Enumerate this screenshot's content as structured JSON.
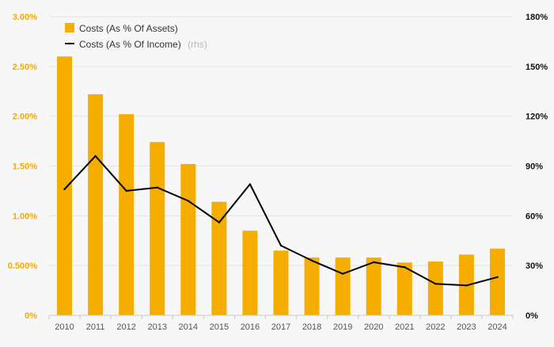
{
  "chart_data": {
    "type": "bar",
    "categories": [
      "2010",
      "2011",
      "2012",
      "2013",
      "2014",
      "2015",
      "2016",
      "2017",
      "2018",
      "2019",
      "2020",
      "2021",
      "2022",
      "2023",
      "2024"
    ],
    "series": [
      {
        "name": "Costs (As % Of Assets)",
        "type": "bar",
        "axis": "left",
        "values": [
          2.6,
          2.22,
          2.02,
          1.74,
          1.52,
          1.14,
          0.85,
          0.65,
          0.58,
          0.58,
          0.58,
          0.53,
          0.54,
          0.61,
          0.67
        ]
      },
      {
        "name": "Costs (As % Of Income)",
        "type": "line",
        "axis": "right",
        "values": [
          76,
          96,
          75,
          77,
          69,
          56,
          79,
          42,
          33,
          25,
          32,
          29,
          19,
          18,
          23
        ]
      }
    ],
    "ylim_left": [
      0,
      3.0
    ],
    "ylim_right": [
      0,
      180
    ],
    "left_ticks": [
      "0%",
      "0.500%",
      "1.00%",
      "1.50%",
      "2.00%",
      "2.50%",
      "3.00%"
    ],
    "right_ticks": [
      "0%",
      "30%",
      "60%",
      "90%",
      "120%",
      "150%",
      "180%"
    ],
    "legend": {
      "position": "top-left",
      "bar_label": "Costs (As % Of Assets)",
      "line_label": "Costs (As % Of Income)",
      "line_suffix": "(rhs)"
    },
    "grid": true,
    "colors": {
      "bar": "#f5ae00",
      "line": "#000000",
      "left_axis_text": "#f5a800",
      "right_axis_text": "#111111",
      "grid": "#e3e3e3",
      "background": "#f7f7f7"
    }
  }
}
